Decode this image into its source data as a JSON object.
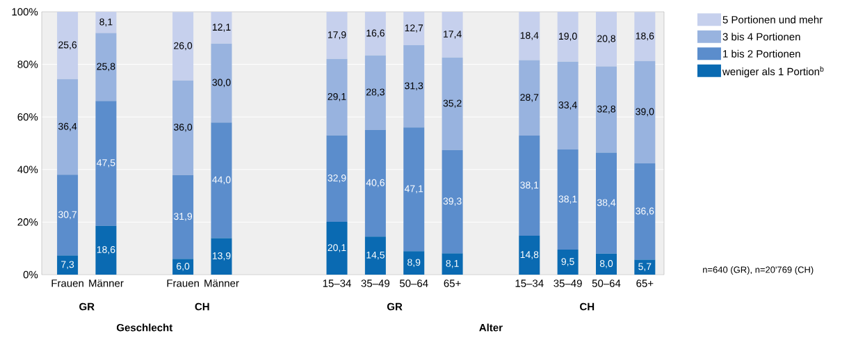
{
  "chart_data": {
    "type": "bar",
    "stacked": true,
    "categories": [
      "Frauen",
      "Männer",
      null,
      "Frauen",
      "Männer",
      null,
      null,
      "15–34",
      "35–49",
      "50–64",
      "65+",
      null,
      "15–34",
      "35–49",
      "50–64",
      "65+"
    ],
    "series": [
      {
        "name": "weniger als 1 Portion$^{b}$",
        "color": "#0a6ab2",
        "values": [
          7.3,
          18.6,
          null,
          6.0,
          13.9,
          null,
          null,
          20.1,
          14.5,
          8.9,
          8.1,
          null,
          14.8,
          9.5,
          8.0,
          5.7
        ],
        "value_labels": [
          "7,3",
          "18,6",
          null,
          "6,0",
          "13,9",
          null,
          null,
          "20,1",
          "14,5",
          "8,9",
          "8,1",
          null,
          "14,8",
          "9,5",
          "8,0",
          "5,7"
        ]
      },
      {
        "name": "1 bis 2 Portionen",
        "color": "#5b8dcc",
        "values": [
          30.7,
          47.5,
          null,
          31.9,
          44.0,
          null,
          null,
          32.9,
          40.6,
          47.1,
          39.3,
          null,
          38.1,
          38.1,
          38.4,
          36.6
        ],
        "value_labels": [
          "30,7",
          "47,5",
          null,
          "31,9",
          "44,0",
          null,
          null,
          "32,9",
          "40,6",
          "47,1",
          "39,3",
          null,
          "38,1",
          "38,1",
          "38,4",
          "36,6"
        ]
      },
      {
        "name": "3 bis 4 Portionen",
        "color": "#98b3df",
        "values": [
          36.4,
          25.8,
          null,
          36.0,
          30.0,
          null,
          null,
          29.1,
          28.3,
          31.3,
          35.2,
          null,
          28.7,
          33.4,
          32.8,
          39.0
        ],
        "value_labels": [
          "36,4",
          "25,8",
          null,
          "36,0",
          "30,0",
          null,
          null,
          "29,1",
          "28,3",
          "31,3",
          "35,2",
          null,
          "28,7",
          "33,4",
          "32,8",
          "39,0"
        ]
      },
      {
        "name": "5 Portionen und mehr",
        "color": "#c6d0ed",
        "values": [
          25.6,
          8.1,
          null,
          26.0,
          12.1,
          null,
          null,
          17.9,
          16.6,
          12.7,
          17.4,
          null,
          18.4,
          19.0,
          20.8,
          18.6
        ],
        "value_labels": [
          "25,6",
          "8,1",
          null,
          "26,0",
          "12,1",
          null,
          null,
          "17,9",
          "16,6",
          "12,7",
          "17,4",
          null,
          "18,4",
          "19,0",
          "20,8",
          "18,6"
        ]
      }
    ],
    "ylim": [
      0,
      100
    ],
    "yticks": [
      {
        "value": 0,
        "label": "0%"
      },
      {
        "value": 20,
        "label": "20%"
      },
      {
        "value": 40,
        "label": "40%"
      },
      {
        "value": 60,
        "label": "60%"
      },
      {
        "value": 80,
        "label": "80%"
      },
      {
        "value": 100,
        "label": "100%"
      }
    ],
    "grid": "y",
    "legend": "top right",
    "annotations": [
      "GR",
      "CH",
      "GR",
      "CH",
      "Geschlecht",
      "Alter",
      "n=640 (GR), n=20'769 (CH)"
    ]
  }
}
